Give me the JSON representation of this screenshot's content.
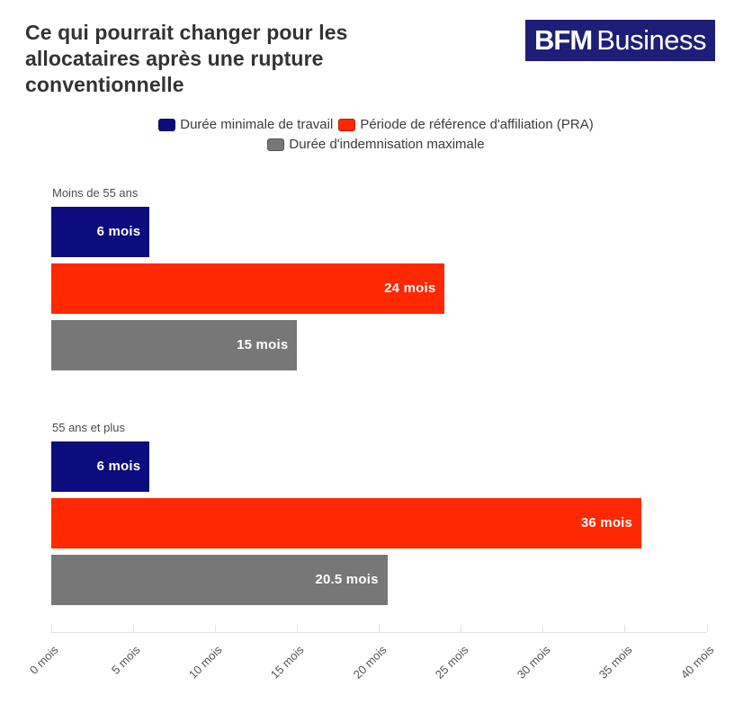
{
  "header": {
    "title": "Ce qui pourrait changer pour les allocataires après une rupture conventionnelle",
    "logo": {
      "bold_part": "BFM",
      "light_part": "Business",
      "background_color": "#1e1e78",
      "text_color": "#ffffff"
    }
  },
  "legend": [
    {
      "label": "Durée minimale de travail",
      "color": "#0c0c7e"
    },
    {
      "label": "Période de référence d'affiliation (PRA)",
      "color": "#ff2800"
    },
    {
      "label": "Durée d'indemnisation maximale",
      "color": "#777777"
    }
  ],
  "chart_data": {
    "type": "bar",
    "orientation": "horizontal",
    "title": "Ce qui pourrait changer pour les allocataires après une rupture conventionnelle",
    "unit": "mois",
    "series_names": [
      "Durée minimale de travail",
      "Période de référence d'affiliation (PRA)",
      "Durée d'indemnisation maximale"
    ],
    "series_colors": [
      "#0c0c7e",
      "#ff2800",
      "#777777"
    ],
    "groups": [
      {
        "category": "Moins de 55 ans",
        "values": [
          6,
          24,
          15
        ],
        "value_labels": [
          "6 mois",
          "24 mois",
          "15 mois"
        ]
      },
      {
        "category": "55 ans et plus",
        "values": [
          6,
          36,
          20.5
        ],
        "value_labels": [
          "6 mois",
          "36 mois",
          "20.5 mois"
        ]
      }
    ],
    "x_axis": {
      "min": 0,
      "max": 40,
      "tick_step": 5,
      "tick_labels": [
        "0 mois",
        "5 mois",
        "10 mois",
        "15 mois",
        "20 mois",
        "25 mois",
        "30 mois",
        "35 mois",
        "40 mois"
      ],
      "tick_label_rotation_deg": -45,
      "grid": false
    },
    "legend_position": "top-center",
    "value_label_position": "inside-end",
    "value_label_color": "#ffffff"
  }
}
